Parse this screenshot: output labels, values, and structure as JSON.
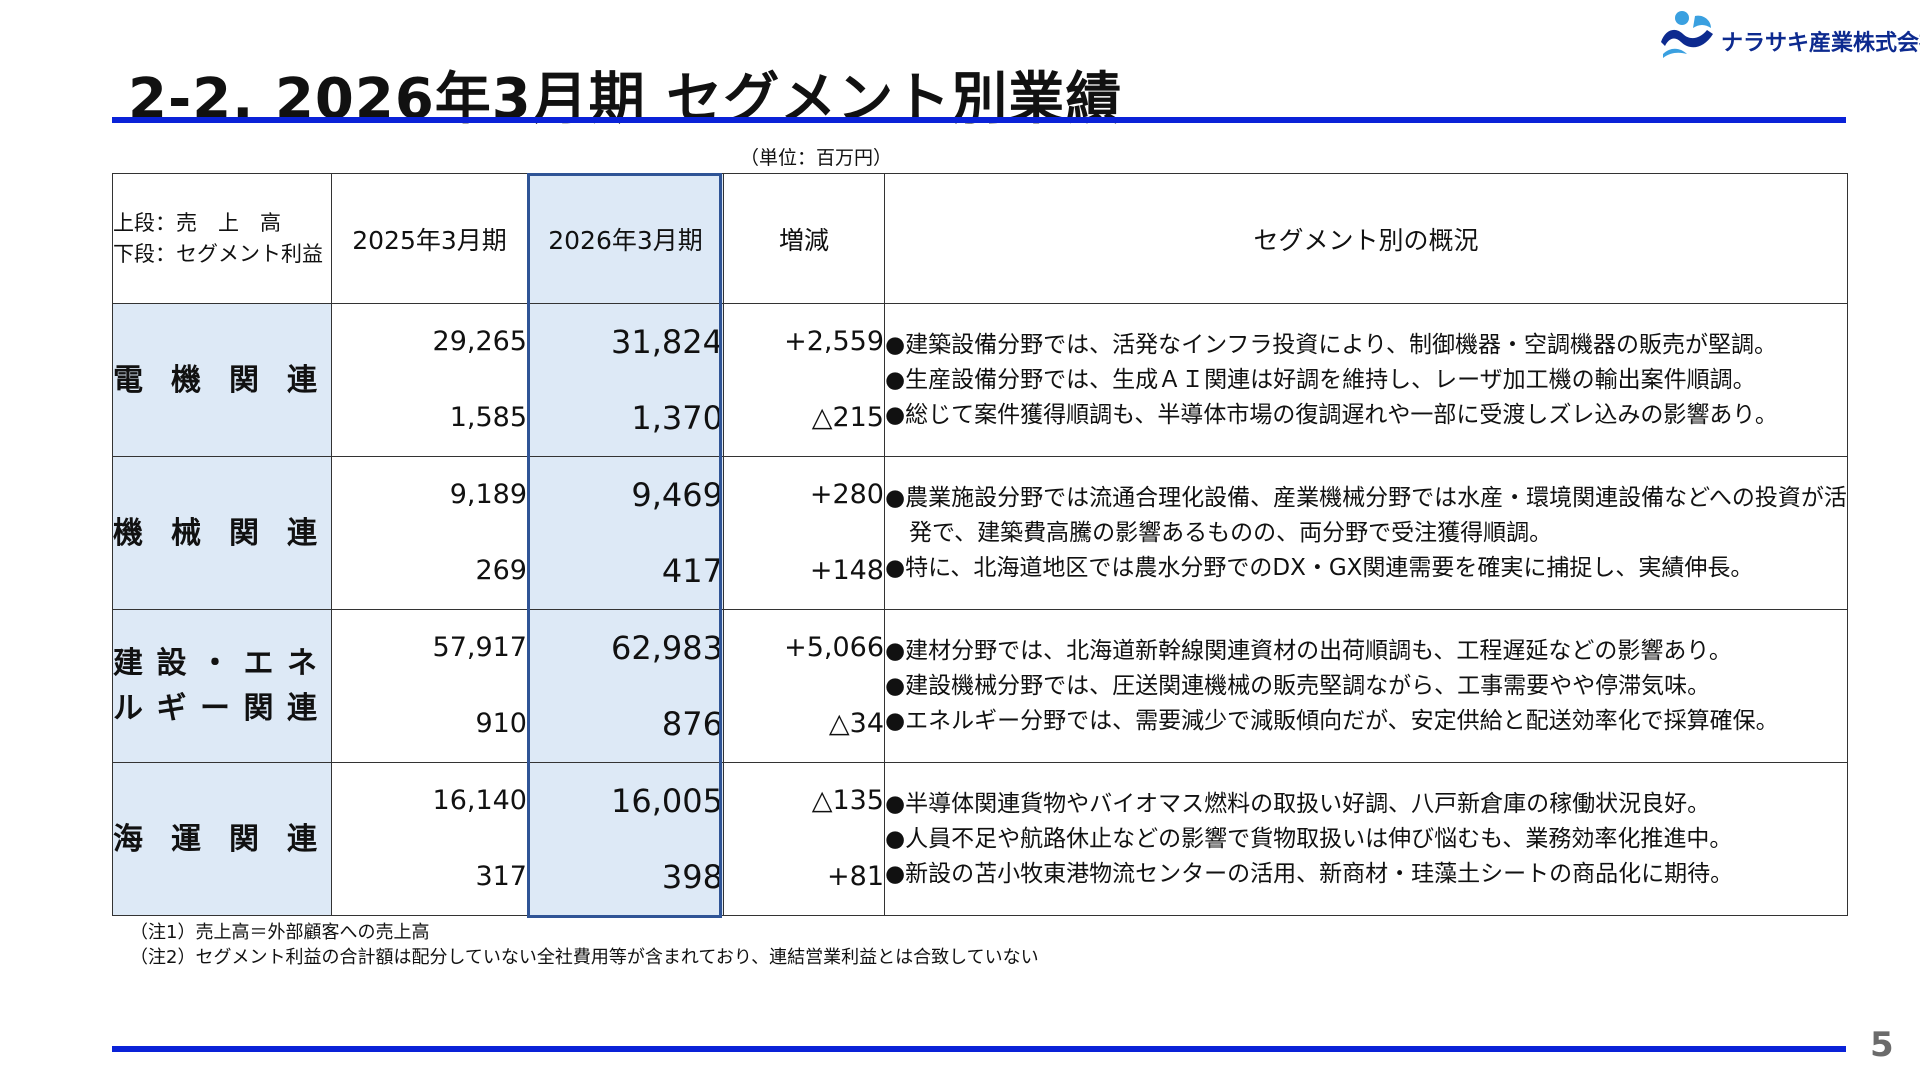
{
  "header": {
    "title": "2-2. 2026年3月期 セグメント別業績",
    "page_number": "5"
  },
  "logo": {
    "company": "ナラサキ産業株式会社",
    "icon": "narasaki-logo-icon",
    "colors": {
      "primary": "#0d2a8f",
      "secondary": "#3aa0e0"
    }
  },
  "unit": "（単位：百万円）",
  "table": {
    "legend": {
      "line1": "上段：売　上　高",
      "line2": "下段：セグメント利益"
    },
    "columns": [
      "2025年3月期",
      "2026年3月期",
      "増減",
      "セグメント別の概況"
    ],
    "rows": [
      {
        "segment_chars": [
          [
            "電",
            "機",
            "関",
            "連"
          ]
        ],
        "sales": {
          "prev": "29,265",
          "curr": "31,824",
          "diff": "+2,559"
        },
        "profit": {
          "prev": "1,585",
          "curr": "1,370",
          "diff": "△215"
        },
        "bullets": [
          "●建築設備分野では、活発なインフラ投資により、制御機器・空調機器の販売が堅調。",
          "●生産設備分野では、生成ＡＩ関連は好調を維持し、レーザ加工機の輸出案件順調。",
          "●総じて案件獲得順調も、半導体市場の復調遅れや一部に受渡しズレ込みの影響あり。"
        ]
      },
      {
        "segment_chars": [
          [
            "機",
            "械",
            "関",
            "連"
          ]
        ],
        "sales": {
          "prev": "9,189",
          "curr": "9,469",
          "diff": "+280"
        },
        "profit": {
          "prev": "269",
          "curr": "417",
          "diff": "+148"
        },
        "bullets": [
          "●農業施設分野では流通合理化設備、産業機械分野では水産・環境関連設備などへの投資が活発で、建築費高騰の影響あるものの、両分野で受注獲得順調。",
          "●特に、北海道地区では農水分野でのDX・GX関連需要を確実に捕捉し、実績伸長。"
        ]
      },
      {
        "segment_chars": [
          [
            "建",
            "設",
            "・",
            "エ",
            "ネ"
          ],
          [
            "ル",
            "ギ",
            "ー",
            "関",
            "連"
          ]
        ],
        "sales": {
          "prev": "57,917",
          "curr": "62,983",
          "diff": "+5,066"
        },
        "profit": {
          "prev": "910",
          "curr": "876",
          "diff": "△34"
        },
        "bullets": [
          "●建材分野では、北海道新幹線関連資材の出荷順調も、工程遅延などの影響あり。",
          "●建設機械分野では、圧送関連機械の販売堅調ながら、工事需要やや停滞気味。",
          "●エネルギー分野では、需要減少で減販傾向だが、安定供給と配送効率化で採算確保。"
        ]
      },
      {
        "segment_chars": [
          [
            "海",
            "運",
            "関",
            "連"
          ]
        ],
        "sales": {
          "prev": "16,140",
          "curr": "16,005",
          "diff": "△135"
        },
        "profit": {
          "prev": "317",
          "curr": "398",
          "diff": "+81"
        },
        "bullets": [
          "●半導体関連貨物やバイオマス燃料の取扱い好調、八戸新倉庫の稼働状況良好。",
          "●人員不足や航路休止などの影響で貨物取扱いは伸び悩むも、業務効率化推進中。",
          "●新設の苫小牧東港物流センターの活用、新商材・珪藻土シートの商品化に期待。"
        ]
      }
    ]
  },
  "notes": [
    "（注1）売上高＝外部顧客への売上高",
    "（注2）セグメント利益の合計額は配分していない全社費用等が含まれており、連結営業利益とは合致していない"
  ],
  "colors": {
    "rule": "#0a22d8",
    "highlight_fill": "#dde9f6",
    "highlight_border": "#2f5496"
  }
}
